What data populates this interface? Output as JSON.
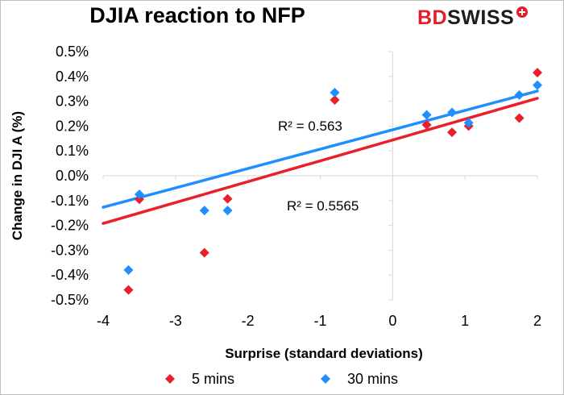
{
  "title": "DJIA reaction to NFP",
  "logo": {
    "text_red": "BD",
    "text_dark": "SWISS"
  },
  "chart_data": {
    "type": "scatter",
    "title": "DJIA reaction to NFP",
    "xlabel": "Surprise (standard deviations)",
    "ylabel": "Change in DJI A (%)",
    "xlim": [
      -4,
      2
    ],
    "ylim": [
      -0.005,
      0.005
    ],
    "x_ticks": [
      -4,
      -3,
      -2,
      -1,
      0,
      1,
      2
    ],
    "x_tick_labels": [
      "-4",
      "-3",
      "-2",
      "-1",
      "0",
      "1",
      "2"
    ],
    "y_ticks": [
      0.005,
      0.004,
      0.003,
      0.002,
      0.001,
      0.0,
      -0.001,
      -0.002,
      -0.003,
      -0.004,
      -0.005
    ],
    "y_tick_labels": [
      "0.5%",
      "0.4%",
      "0.3%",
      "0.2%",
      "0.1%",
      "0.0%",
      "-0.1%",
      "-0.2%",
      "-0.3%",
      "-0.4%",
      "-0.5%"
    ],
    "grid": false,
    "legend_position": "bottom",
    "series": [
      {
        "name": "5 mins",
        "color": "#e8202a",
        "marker": "diamond",
        "points": [
          {
            "x": -3.65,
            "y": -0.0046
          },
          {
            "x": -3.5,
            "y": -0.00095
          },
          {
            "x": -2.6,
            "y": -0.0031
          },
          {
            "x": -2.28,
            "y": -0.00093
          },
          {
            "x": -0.8,
            "y": 0.00305
          },
          {
            "x": 0.47,
            "y": 0.00205
          },
          {
            "x": 0.82,
            "y": 0.00175
          },
          {
            "x": 1.05,
            "y": 0.002
          },
          {
            "x": 1.75,
            "y": 0.00232
          },
          {
            "x": 2.0,
            "y": 0.00415
          }
        ],
        "trendline": {
          "slope": 0.00084,
          "intercept": 0.00144,
          "r2_label": "R² = 0.5565"
        }
      },
      {
        "name": "30 mins",
        "color": "#1f8fff",
        "marker": "diamond",
        "points": [
          {
            "x": -3.65,
            "y": -0.0038
          },
          {
            "x": -3.5,
            "y": -0.00075
          },
          {
            "x": -2.6,
            "y": -0.0014
          },
          {
            "x": -2.28,
            "y": -0.0014
          },
          {
            "x": -0.8,
            "y": 0.00335
          },
          {
            "x": 0.47,
            "y": 0.00245
          },
          {
            "x": 0.82,
            "y": 0.00255
          },
          {
            "x": 1.05,
            "y": 0.00213
          },
          {
            "x": 1.75,
            "y": 0.00325
          },
          {
            "x": 2.0,
            "y": 0.00365
          }
        ],
        "trendline": {
          "slope": 0.00078,
          "intercept": 0.00185,
          "r2_label": "R² = 0.563"
        }
      }
    ]
  }
}
